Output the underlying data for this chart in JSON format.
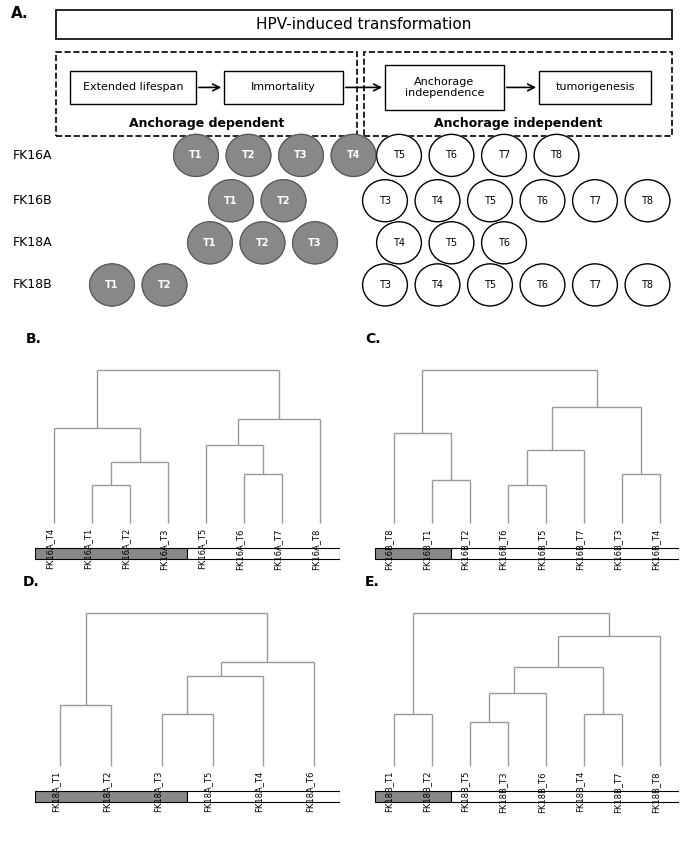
{
  "title": "HPV-induced transformation",
  "panel_labels": {
    "A": "A.",
    "B": "B.",
    "C": "C.",
    "D": "D.",
    "E": "E."
  },
  "flow_boxes": [
    "Extended lifespan",
    "Immortality",
    "Anchorage\nindependence",
    "tumorigenesis"
  ],
  "dashed_box1_label": "Anchorage dependent",
  "dashed_box2_label": "Anchorage independent",
  "cell_lines": [
    "FK16A",
    "FK16B",
    "FK18A",
    "FK18B"
  ],
  "dark_circles": {
    "FK16A": [
      "T1",
      "T2",
      "T3",
      "T4"
    ],
    "FK16B": [
      "T1",
      "T2"
    ],
    "FK18A": [
      "T1",
      "T2",
      "T3"
    ],
    "FK18B": [
      "T1",
      "T2"
    ]
  },
  "light_circles": {
    "FK16A": [
      "T5",
      "T6",
      "T7",
      "T8"
    ],
    "FK16B": [
      "T3",
      "T4",
      "T5",
      "T6",
      "T7",
      "T8"
    ],
    "FK18A": [
      "T4",
      "T5",
      "T6"
    ],
    "FK18B": [
      "T3",
      "T4",
      "T5",
      "T6",
      "T7",
      "T8"
    ]
  },
  "dark_color": "#888888",
  "dendro_line_color": "#999999",
  "bar_dark_color": "#888888",
  "bar_light_color": "#ffffff",
  "B_labels": [
    "FK16A_T4",
    "FK16A_T1",
    "FK16A_T2",
    "FK16A_T3",
    "FK16A_T5",
    "FK16A_T6",
    "FK16A_T7",
    "FK16A_T8"
  ],
  "B_dark_count": 4,
  "C_labels": [
    "FK16B_T8",
    "FK16B_T1",
    "FK16B_T2",
    "FK16B_T6",
    "FK16B_T5",
    "FK16B_T7",
    "FK16B_T3",
    "FK16B_T4"
  ],
  "C_dark_count": 2,
  "D_labels": [
    "FK18A_T1",
    "FK18A_T2",
    "FK18A_T3",
    "FK18A_T5",
    "FK18A_T4",
    "FK18A_T6"
  ],
  "D_dark_count": 3,
  "E_labels": [
    "FK18B_T1",
    "FK18B_T2",
    "FK18B_T5",
    "FK18B_T3",
    "FK18B_T6",
    "FK18B_T4",
    "FK18B_T7",
    "FK18B_T8"
  ],
  "E_dark_count": 2
}
